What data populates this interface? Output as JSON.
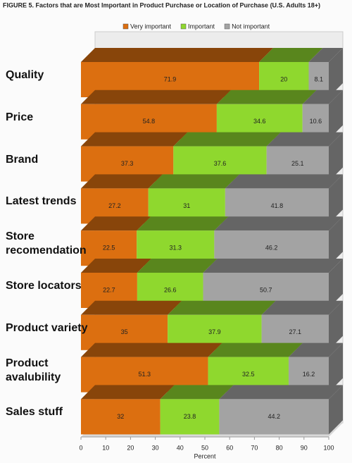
{
  "chart_data": {
    "type": "bar3d_stacked_horizontal",
    "title": "FIGURE 5. Factors that are Most Important in Product Purchase or Location of Purchase (U.S. Adults 18+)",
    "categories": [
      "Quality",
      "Price",
      "Brand",
      "Latest trends",
      "Store recomendation",
      "Store locators",
      "Product variety",
      "Product avalubility",
      "Sales stuff"
    ],
    "series": [
      {
        "name": "Very important",
        "color": "#dc6f10",
        "values": [
          71.9,
          54.8,
          37.3,
          27.2,
          22.5,
          22.7,
          35,
          51.3,
          32
        ]
      },
      {
        "name": "Important",
        "color": "#8fd82e",
        "values": [
          20,
          34.6,
          37.6,
          31,
          31.3,
          26.6,
          37.9,
          32.5,
          23.8
        ]
      },
      {
        "name": "Not important",
        "color": "#a3a3a3",
        "values": [
          8.1,
          10.6,
          25.1,
          41.8,
          46.2,
          50.7,
          27.1,
          16.2,
          44.2
        ]
      }
    ],
    "xlabel": "Percent",
    "xlim": [
      0,
      100
    ],
    "xticks": [
      0,
      10,
      20,
      30,
      40,
      50,
      60,
      70,
      80,
      90,
      100
    ]
  }
}
